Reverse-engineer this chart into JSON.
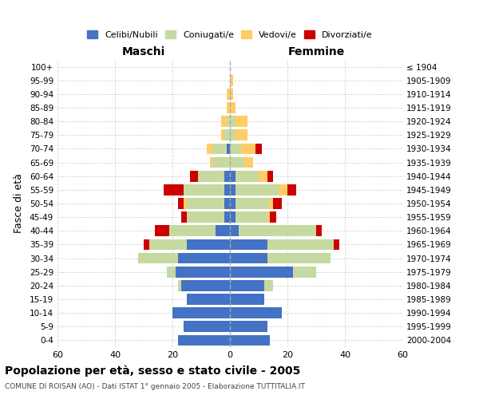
{
  "age_groups": [
    "0-4",
    "5-9",
    "10-14",
    "15-19",
    "20-24",
    "25-29",
    "30-34",
    "35-39",
    "40-44",
    "45-49",
    "50-54",
    "55-59",
    "60-64",
    "65-69",
    "70-74",
    "75-79",
    "80-84",
    "85-89",
    "90-94",
    "95-99",
    "100+"
  ],
  "birth_years": [
    "2000-2004",
    "1995-1999",
    "1990-1994",
    "1985-1989",
    "1980-1984",
    "1975-1979",
    "1970-1974",
    "1965-1969",
    "1960-1964",
    "1955-1959",
    "1950-1954",
    "1945-1949",
    "1940-1944",
    "1935-1939",
    "1930-1934",
    "1925-1929",
    "1920-1924",
    "1915-1919",
    "1910-1914",
    "1905-1909",
    "≤ 1904"
  ],
  "male": {
    "celibi": [
      18,
      16,
      20,
      15,
      17,
      19,
      18,
      15,
      5,
      2,
      2,
      2,
      2,
      0,
      1,
      0,
      0,
      0,
      0,
      0,
      0
    ],
    "coniugati": [
      0,
      0,
      0,
      0,
      1,
      3,
      14,
      13,
      16,
      13,
      13,
      14,
      9,
      6,
      5,
      2,
      1,
      0,
      0,
      0,
      0
    ],
    "vedovi": [
      0,
      0,
      0,
      0,
      0,
      0,
      0,
      0,
      0,
      0,
      1,
      0,
      0,
      1,
      2,
      1,
      2,
      1,
      1,
      0,
      0
    ],
    "divorziati": [
      0,
      0,
      0,
      0,
      0,
      0,
      0,
      2,
      5,
      2,
      2,
      7,
      3,
      0,
      0,
      0,
      0,
      0,
      0,
      0,
      0
    ]
  },
  "female": {
    "nubili": [
      14,
      13,
      18,
      12,
      12,
      22,
      13,
      13,
      3,
      2,
      2,
      2,
      2,
      0,
      0,
      0,
      0,
      0,
      0,
      0,
      0
    ],
    "coniugate": [
      0,
      0,
      0,
      0,
      3,
      8,
      22,
      23,
      27,
      11,
      12,
      15,
      8,
      5,
      4,
      2,
      2,
      0,
      0,
      0,
      0
    ],
    "vedove": [
      0,
      0,
      0,
      0,
      0,
      0,
      0,
      0,
      0,
      1,
      1,
      3,
      3,
      3,
      5,
      4,
      4,
      2,
      1,
      1,
      0
    ],
    "divorziate": [
      0,
      0,
      0,
      0,
      0,
      0,
      0,
      2,
      2,
      2,
      3,
      3,
      2,
      0,
      2,
      0,
      0,
      0,
      0,
      0,
      0
    ]
  },
  "color_celibi": "#4472C4",
  "color_coniugati": "#C6D9A0",
  "color_vedovi": "#FFCC66",
  "color_divorziati": "#CC0000",
  "xlim": 60,
  "title": "Popolazione per età, sesso e stato civile - 2005",
  "subtitle": "COMUNE DI ROISAN (AO) - Dati ISTAT 1° gennaio 2005 - Elaborazione TUTTITALIA.IT",
  "ylabel_left": "Fasce di età",
  "xlabel_left": "Maschi",
  "xlabel_right": "Femmine",
  "bg_color": "#FFFFFF",
  "grid_color": "#CCCCCC"
}
